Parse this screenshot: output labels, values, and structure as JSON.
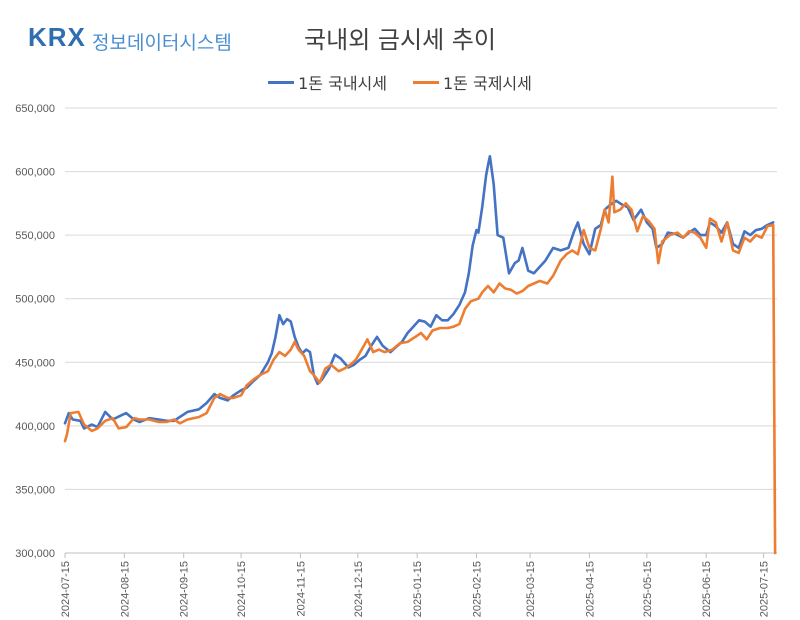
{
  "logo": {
    "brand": "KRX",
    "name": "정보데이터시스템"
  },
  "chart_data": {
    "type": "line",
    "title": "국내외 금시세 추이",
    "xlabel": "",
    "ylabel": "",
    "ylim": [
      300000,
      650000
    ],
    "yticks": [
      300000,
      350000,
      400000,
      450000,
      500000,
      550000,
      600000,
      650000
    ],
    "ytick_labels": [
      "300,000",
      "350,000",
      "400,000",
      "450,000",
      "500,000",
      "550,000",
      "600,000",
      "650,000"
    ],
    "xlim": [
      "2024-07-15",
      "2025-07-22"
    ],
    "xticks": [
      "2024-07-15",
      "2024-08-15",
      "2024-09-15",
      "2024-10-15",
      "2024-11-15",
      "2024-12-15",
      "2025-01-15",
      "2025-02-15",
      "2025-03-15",
      "2025-04-15",
      "2025-05-15",
      "2025-06-15",
      "2025-07-15"
    ],
    "grid": "horizontal",
    "legend_position": "top",
    "series": [
      {
        "name": "1돈 국내시세",
        "color": "#4472c4",
        "points": [
          [
            "2024-07-15",
            402000
          ],
          [
            "2024-07-17",
            410000
          ],
          [
            "2024-07-19",
            405000
          ],
          [
            "2024-07-23",
            404000
          ],
          [
            "2024-07-25",
            398000
          ],
          [
            "2024-07-29",
            401000
          ],
          [
            "2024-08-01",
            399000
          ],
          [
            "2024-08-05",
            411000
          ],
          [
            "2024-08-09",
            405000
          ],
          [
            "2024-08-13",
            408000
          ],
          [
            "2024-08-16",
            410000
          ],
          [
            "2024-08-20",
            405000
          ],
          [
            "2024-08-23",
            403000
          ],
          [
            "2024-08-28",
            406000
          ],
          [
            "2024-09-02",
            405000
          ],
          [
            "2024-09-06",
            404000
          ],
          [
            "2024-09-10",
            404000
          ],
          [
            "2024-09-13",
            407000
          ],
          [
            "2024-09-17",
            411000
          ],
          [
            "2024-09-23",
            413000
          ],
          [
            "2024-09-27",
            418000
          ],
          [
            "2024-10-01",
            425000
          ],
          [
            "2024-10-04",
            422000
          ],
          [
            "2024-10-08",
            420000
          ],
          [
            "2024-10-11",
            424000
          ],
          [
            "2024-10-15",
            428000
          ],
          [
            "2024-10-18",
            430000
          ],
          [
            "2024-10-22",
            436000
          ],
          [
            "2024-10-25",
            440000
          ],
          [
            "2024-10-29",
            450000
          ],
          [
            "2024-10-31",
            457000
          ],
          [
            "2024-11-02",
            470000
          ],
          [
            "2024-11-04",
            487000
          ],
          [
            "2024-11-06",
            480000
          ],
          [
            "2024-11-08",
            484000
          ],
          [
            "2024-11-10",
            482000
          ],
          [
            "2024-11-12",
            470000
          ],
          [
            "2024-11-14",
            462000
          ],
          [
            "2024-11-16",
            457000
          ],
          [
            "2024-11-18",
            460000
          ],
          [
            "2024-11-20",
            458000
          ],
          [
            "2024-11-22",
            440000
          ],
          [
            "2024-11-24",
            433000
          ],
          [
            "2024-11-26",
            436000
          ],
          [
            "2024-11-30",
            445000
          ],
          [
            "2024-12-03",
            456000
          ],
          [
            "2024-12-06",
            453000
          ],
          [
            "2024-12-10",
            446000
          ],
          [
            "2024-12-13",
            448000
          ],
          [
            "2024-12-16",
            452000
          ],
          [
            "2024-12-19",
            455000
          ],
          [
            "2024-12-22",
            463000
          ],
          [
            "2024-12-25",
            470000
          ],
          [
            "2024-12-28",
            463000
          ],
          [
            "2025-01-01",
            458000
          ],
          [
            "2025-01-04",
            462000
          ],
          [
            "2025-01-07",
            466000
          ],
          [
            "2025-01-10",
            473000
          ],
          [
            "2025-01-13",
            478000
          ],
          [
            "2025-01-16",
            483000
          ],
          [
            "2025-01-19",
            482000
          ],
          [
            "2025-01-22",
            478000
          ],
          [
            "2025-01-25",
            487000
          ],
          [
            "2025-01-28",
            483000
          ],
          [
            "2025-01-31",
            483000
          ],
          [
            "2025-02-03",
            488000
          ],
          [
            "2025-02-06",
            495000
          ],
          [
            "2025-02-09",
            505000
          ],
          [
            "2025-02-11",
            520000
          ],
          [
            "2025-02-13",
            542000
          ],
          [
            "2025-02-15",
            554000
          ],
          [
            "2025-02-16",
            552000
          ],
          [
            "2025-02-18",
            572000
          ],
          [
            "2025-02-20",
            597000
          ],
          [
            "2025-02-21",
            605000
          ],
          [
            "2025-02-22",
            612000
          ],
          [
            "2025-02-24",
            590000
          ],
          [
            "2025-02-26",
            550000
          ],
          [
            "2025-03-01",
            548000
          ],
          [
            "2025-03-04",
            520000
          ],
          [
            "2025-03-07",
            528000
          ],
          [
            "2025-03-09",
            530000
          ],
          [
            "2025-03-11",
            540000
          ],
          [
            "2025-03-14",
            522000
          ],
          [
            "2025-03-17",
            520000
          ],
          [
            "2025-03-20",
            525000
          ],
          [
            "2025-03-23",
            530000
          ],
          [
            "2025-03-27",
            540000
          ],
          [
            "2025-03-31",
            538000
          ],
          [
            "2025-04-04",
            540000
          ],
          [
            "2025-04-07",
            553000
          ],
          [
            "2025-04-09",
            560000
          ],
          [
            "2025-04-12",
            543000
          ],
          [
            "2025-04-15",
            535000
          ],
          [
            "2025-04-18",
            555000
          ],
          [
            "2025-04-21",
            558000
          ],
          [
            "2025-04-23",
            570000
          ],
          [
            "2025-04-26",
            574000
          ],
          [
            "2025-04-29",
            577000
          ],
          [
            "2025-05-02",
            574000
          ],
          [
            "2025-05-05",
            572000
          ],
          [
            "2025-05-08",
            562000
          ],
          [
            "2025-05-12",
            570000
          ],
          [
            "2025-05-15",
            560000
          ],
          [
            "2025-05-18",
            555000
          ],
          [
            "2025-05-20",
            540000
          ],
          [
            "2025-05-23",
            543000
          ],
          [
            "2025-05-26",
            552000
          ],
          [
            "2025-05-30",
            551000
          ],
          [
            "2025-06-03",
            548000
          ],
          [
            "2025-06-06",
            552000
          ],
          [
            "2025-06-09",
            555000
          ],
          [
            "2025-06-12",
            550000
          ],
          [
            "2025-06-15",
            550000
          ],
          [
            "2025-06-17",
            560000
          ],
          [
            "2025-06-20",
            557000
          ],
          [
            "2025-06-23",
            552000
          ],
          [
            "2025-06-26",
            560000
          ],
          [
            "2025-06-29",
            543000
          ],
          [
            "2025-07-02",
            540000
          ],
          [
            "2025-07-05",
            553000
          ],
          [
            "2025-07-08",
            550000
          ],
          [
            "2025-07-11",
            554000
          ],
          [
            "2025-07-14",
            555000
          ],
          [
            "2025-07-17",
            558000
          ],
          [
            "2025-07-20",
            560000
          ]
        ]
      },
      {
        "name": "1돈 국제시세",
        "color": "#ed7d31",
        "points": [
          [
            "2024-07-15",
            388000
          ],
          [
            "2024-07-16",
            393000
          ],
          [
            "2024-07-18",
            410000
          ],
          [
            "2024-07-22",
            411000
          ],
          [
            "2024-07-25",
            401000
          ],
          [
            "2024-07-29",
            396000
          ],
          [
            "2024-08-01",
            398000
          ],
          [
            "2024-08-05",
            404000
          ],
          [
            "2024-08-09",
            406000
          ],
          [
            "2024-08-12",
            398000
          ],
          [
            "2024-08-16",
            399000
          ],
          [
            "2024-08-20",
            406000
          ],
          [
            "2024-08-23",
            405000
          ],
          [
            "2024-08-28",
            405000
          ],
          [
            "2024-09-02",
            403000
          ],
          [
            "2024-09-06",
            403000
          ],
          [
            "2024-09-10",
            405000
          ],
          [
            "2024-09-13",
            402000
          ],
          [
            "2024-09-17",
            405000
          ],
          [
            "2024-09-23",
            407000
          ],
          [
            "2024-09-27",
            410000
          ],
          [
            "2024-10-01",
            422000
          ],
          [
            "2024-10-04",
            425000
          ],
          [
            "2024-10-08",
            422000
          ],
          [
            "2024-10-11",
            422000
          ],
          [
            "2024-10-15",
            424000
          ],
          [
            "2024-10-18",
            432000
          ],
          [
            "2024-10-22",
            437000
          ],
          [
            "2024-10-25",
            440000
          ],
          [
            "2024-10-29",
            443000
          ],
          [
            "2024-11-01",
            452000
          ],
          [
            "2024-11-04",
            458000
          ],
          [
            "2024-11-07",
            455000
          ],
          [
            "2024-11-10",
            460000
          ],
          [
            "2024-11-12",
            466000
          ],
          [
            "2024-11-14",
            460000
          ],
          [
            "2024-11-17",
            455000
          ],
          [
            "2024-11-20",
            443000
          ],
          [
            "2024-11-22",
            440000
          ],
          [
            "2024-11-25",
            434000
          ],
          [
            "2024-11-28",
            445000
          ],
          [
            "2024-12-01",
            448000
          ],
          [
            "2024-12-05",
            443000
          ],
          [
            "2024-12-08",
            445000
          ],
          [
            "2024-12-11",
            448000
          ],
          [
            "2024-12-14",
            452000
          ],
          [
            "2024-12-17",
            460000
          ],
          [
            "2024-12-20",
            468000
          ],
          [
            "2024-12-23",
            458000
          ],
          [
            "2024-12-26",
            460000
          ],
          [
            "2024-12-29",
            458000
          ],
          [
            "2025-01-02",
            460000
          ],
          [
            "2025-01-06",
            465000
          ],
          [
            "2025-01-10",
            466000
          ],
          [
            "2025-01-14",
            470000
          ],
          [
            "2025-01-17",
            473000
          ],
          [
            "2025-01-20",
            468000
          ],
          [
            "2025-01-23",
            475000
          ],
          [
            "2025-01-27",
            477000
          ],
          [
            "2025-01-31",
            477000
          ],
          [
            "2025-02-03",
            478000
          ],
          [
            "2025-02-06",
            480000
          ],
          [
            "2025-02-09",
            492000
          ],
          [
            "2025-02-12",
            498000
          ],
          [
            "2025-02-16",
            500000
          ],
          [
            "2025-02-18",
            505000
          ],
          [
            "2025-02-21",
            510000
          ],
          [
            "2025-02-24",
            505000
          ],
          [
            "2025-02-27",
            512000
          ],
          [
            "2025-03-02",
            508000
          ],
          [
            "2025-03-05",
            507000
          ],
          [
            "2025-03-08",
            504000
          ],
          [
            "2025-03-11",
            506000
          ],
          [
            "2025-03-14",
            510000
          ],
          [
            "2025-03-17",
            512000
          ],
          [
            "2025-03-20",
            514000
          ],
          [
            "2025-03-24",
            512000
          ],
          [
            "2025-03-27",
            518000
          ],
          [
            "2025-03-31",
            530000
          ],
          [
            "2025-04-03",
            535000
          ],
          [
            "2025-04-06",
            538000
          ],
          [
            "2025-04-09",
            535000
          ],
          [
            "2025-04-12",
            554000
          ],
          [
            "2025-04-15",
            540000
          ],
          [
            "2025-04-18",
            538000
          ],
          [
            "2025-04-21",
            555000
          ],
          [
            "2025-04-23",
            570000
          ],
          [
            "2025-04-25",
            560000
          ],
          [
            "2025-04-27",
            596000
          ],
          [
            "2025-04-28",
            568000
          ],
          [
            "2025-05-01",
            570000
          ],
          [
            "2025-05-04",
            575000
          ],
          [
            "2025-05-07",
            570000
          ],
          [
            "2025-05-10",
            553000
          ],
          [
            "2025-05-13",
            565000
          ],
          [
            "2025-05-16",
            561000
          ],
          [
            "2025-05-19",
            555000
          ],
          [
            "2025-05-21",
            528000
          ],
          [
            "2025-05-23",
            545000
          ],
          [
            "2025-05-27",
            550000
          ],
          [
            "2025-05-31",
            552000
          ],
          [
            "2025-06-03",
            548000
          ],
          [
            "2025-06-06",
            553000
          ],
          [
            "2025-06-09",
            552000
          ],
          [
            "2025-06-12",
            548000
          ],
          [
            "2025-06-15",
            540000
          ],
          [
            "2025-06-17",
            563000
          ],
          [
            "2025-06-20",
            560000
          ],
          [
            "2025-06-23",
            545000
          ],
          [
            "2025-06-26",
            560000
          ],
          [
            "2025-06-29",
            538000
          ],
          [
            "2025-07-02",
            536000
          ],
          [
            "2025-07-05",
            548000
          ],
          [
            "2025-07-08",
            545000
          ],
          [
            "2025-07-11",
            550000
          ],
          [
            "2025-07-14",
            548000
          ],
          [
            "2025-07-17",
            557000
          ],
          [
            "2025-07-20",
            558000
          ],
          [
            "2025-07-21",
            300000
          ]
        ]
      }
    ]
  }
}
